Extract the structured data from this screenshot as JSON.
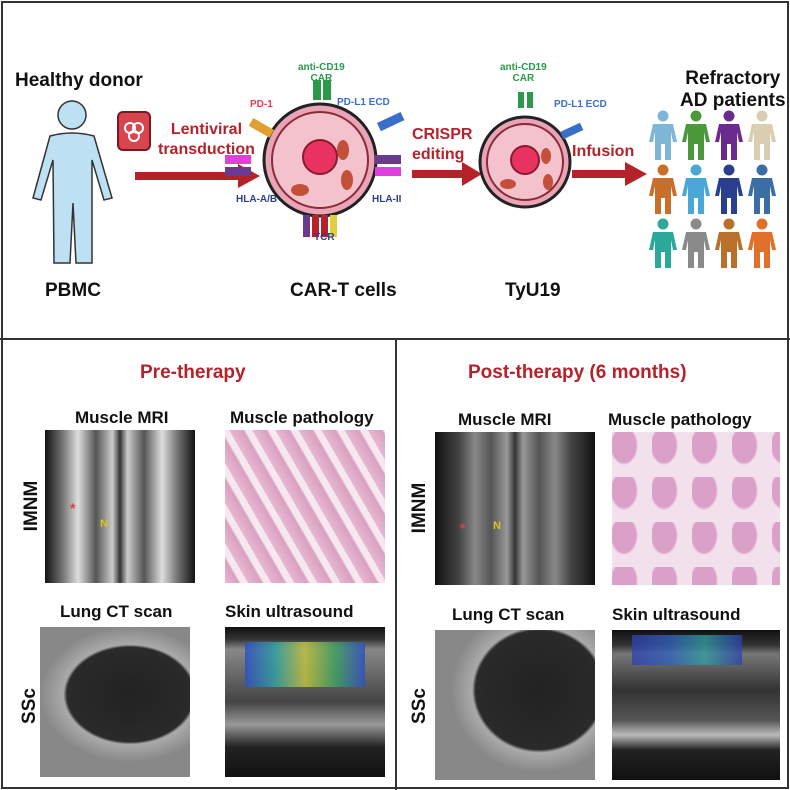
{
  "top": {
    "donor_label": "Healthy donor",
    "pbmc_label": "PBMC",
    "step1": [
      "Lentiviral",
      "transduction"
    ],
    "step2": [
      "CRISPR",
      "editing"
    ],
    "step3": "Infusion",
    "cart_label": "CAR-T cells",
    "tyu19_label": "TyU19",
    "patients_label": [
      "Refractory",
      "AD patients"
    ],
    "cell1": {
      "car": [
        "anti-CD19",
        "CAR"
      ],
      "pd1": "PD-1",
      "pdl1": "PD-L1 ECD",
      "hla1": "HLA-A/B",
      "hla2": "HLA-II",
      "tcr": "TCR"
    },
    "cell2": {
      "car": [
        "anti-CD19",
        "CAR"
      ],
      "pdl1": "PD-L1 ECD"
    },
    "patient_colors": [
      "#7fb6d8",
      "#4a9a3c",
      "#6b2a8e",
      "#d9cfb0",
      "#c8702a",
      "#4aa8d8",
      "#2a3f8e",
      "#3a6ea5",
      "#2aa89a",
      "#8a8a8a",
      "#b8702a",
      "#e0702a"
    ]
  },
  "pre": {
    "title": "Pre-therapy",
    "mri": "Muscle MRI",
    "path": "Muscle pathology",
    "ct": "Lung CT scan",
    "us": "Skin ultrasound"
  },
  "post": {
    "title": "Post-therapy (6 months)",
    "mri": "Muscle MRI",
    "path": "Muscle pathology",
    "ct": "Lung CT scan",
    "us": "Skin ultrasound"
  },
  "rows": {
    "imnm": "IMNM",
    "ssc": "SSc"
  },
  "mri_marks": {
    "n": "N",
    "star": "*"
  }
}
